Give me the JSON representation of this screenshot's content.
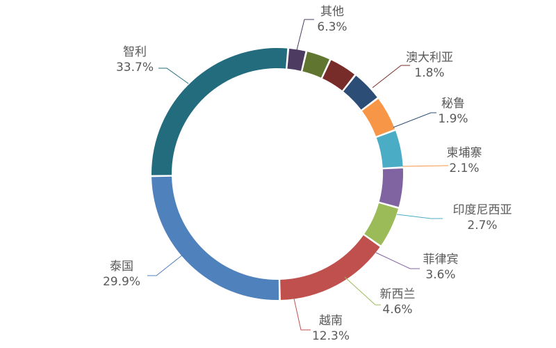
{
  "chart_data": {
    "type": "pie",
    "variant": "donut",
    "title": "",
    "legend": "none",
    "slices": [
      {
        "name": "智利",
        "value": 33.7,
        "label": "33.7%",
        "color": "#236C7E"
      },
      {
        "name": "泰国",
        "value": 29.9,
        "label": "29.9%",
        "color": "#4F81BD"
      },
      {
        "name": "越南",
        "value": 12.3,
        "label": "12.3%",
        "color": "#C0504D"
      },
      {
        "name": "新西兰",
        "value": 4.6,
        "label": "4.6%",
        "color": "#9BBB59"
      },
      {
        "name": "菲律宾",
        "value": 3.6,
        "label": "3.6%",
        "color": "#8064A2"
      },
      {
        "name": "印度尼西亚",
        "value": 2.7,
        "label": "2.7%",
        "color": "#4BACC6"
      },
      {
        "name": "柬埔寨",
        "value": 2.1,
        "label": "2.1%",
        "color": "#F79646"
      },
      {
        "name": "秘鲁",
        "value": 1.9,
        "label": "1.9%",
        "color": "#2C4D75"
      },
      {
        "name": "澳大利亚",
        "value": 1.8,
        "label": "1.8%",
        "color": "#772C2A"
      },
      {
        "name": "其他",
        "value": 6.3,
        "label": "6.3%",
        "color": "#5F7530",
        "color_other": "#4D3B62"
      }
    ]
  }
}
